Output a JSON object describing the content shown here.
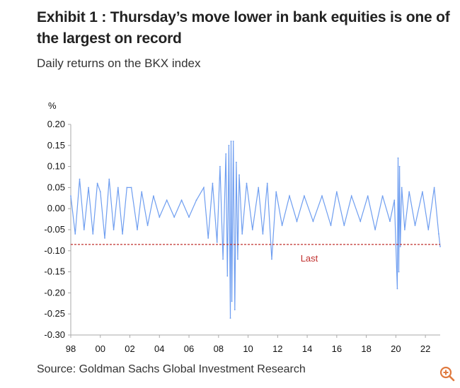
{
  "header": {
    "title": "Exhibit 1 : Thursday’s move lower in bank equities is one of the largest on record",
    "subtitle": "Daily returns on the BKX index"
  },
  "footer": {
    "source": "Source: Goldman Sachs Global Investment Research"
  },
  "icons": {
    "zoom": "zoom-in-icon"
  },
  "colors": {
    "series": "#6f9ef0",
    "reference": "#c0302e",
    "axis": "#aaaaaa"
  },
  "chart_data": {
    "type": "line",
    "ylabel": "%",
    "ylim": [
      -0.3,
      0.2
    ],
    "yticks": [
      "0.20",
      "0.15",
      "0.10",
      "0.05",
      "0.00",
      "-0.05",
      "-0.10",
      "-0.15",
      "-0.20",
      "-0.25",
      "-0.30"
    ],
    "xlim": [
      1998,
      2023
    ],
    "xticks": [
      "98",
      "00",
      "02",
      "04",
      "06",
      "08",
      "10",
      "12",
      "14",
      "16",
      "18",
      "20",
      "22"
    ],
    "grid": false,
    "series": [
      {
        "name": "",
        "x": [
          1998.0,
          1998.3,
          1998.6,
          1998.9,
          1999.2,
          1999.5,
          1999.8,
          2000.0,
          2000.3,
          2000.6,
          2000.9,
          2001.2,
          2001.5,
          2001.8,
          2002.1,
          2002.5,
          2002.8,
          2003.2,
          2003.6,
          2004.0,
          2004.5,
          2005.0,
          2005.5,
          2006.0,
          2006.5,
          2007.0,
          2007.3,
          2007.6,
          2007.9,
          2008.1,
          2008.3,
          2008.5,
          2008.6,
          2008.7,
          2008.8,
          2008.85,
          2008.9,
          2009.0,
          2009.1,
          2009.2,
          2009.3,
          2009.4,
          2009.6,
          2009.9,
          2010.3,
          2010.7,
          2011.0,
          2011.3,
          2011.6,
          2011.9,
          2012.3,
          2012.8,
          2013.3,
          2013.8,
          2014.4,
          2015.0,
          2015.6,
          2016.0,
          2016.5,
          2017.0,
          2017.6,
          2018.1,
          2018.6,
          2019.1,
          2019.6,
          2019.9,
          2020.1,
          2020.15,
          2020.2,
          2020.25,
          2020.3,
          2020.4,
          2020.6,
          2020.9,
          2021.3,
          2021.8,
          2022.2,
          2022.6,
          2022.9,
          2023.0
        ],
        "y": [
          0.03,
          -0.06,
          0.07,
          -0.05,
          0.05,
          -0.06,
          0.06,
          0.04,
          -0.07,
          0.07,
          -0.05,
          0.05,
          -0.06,
          0.05,
          0.05,
          -0.05,
          0.04,
          -0.04,
          0.03,
          -0.02,
          0.02,
          -0.02,
          0.02,
          -0.02,
          0.02,
          0.05,
          -0.07,
          0.06,
          -0.08,
          0.1,
          -0.12,
          0.13,
          -0.16,
          0.15,
          -0.26,
          0.16,
          -0.22,
          0.16,
          -0.24,
          0.11,
          -0.12,
          0.08,
          -0.06,
          0.06,
          -0.05,
          0.05,
          -0.06,
          0.06,
          -0.12,
          0.04,
          -0.04,
          0.03,
          -0.03,
          0.03,
          -0.03,
          0.03,
          -0.04,
          0.04,
          -0.04,
          0.03,
          -0.03,
          0.03,
          -0.05,
          0.03,
          -0.03,
          0.02,
          -0.19,
          0.12,
          -0.15,
          0.1,
          -0.09,
          0.05,
          -0.05,
          0.04,
          -0.04,
          0.04,
          -0.05,
          0.05,
          -0.06,
          -0.09
        ]
      }
    ],
    "reference_line": {
      "value": -0.085,
      "label": "Last"
    }
  }
}
